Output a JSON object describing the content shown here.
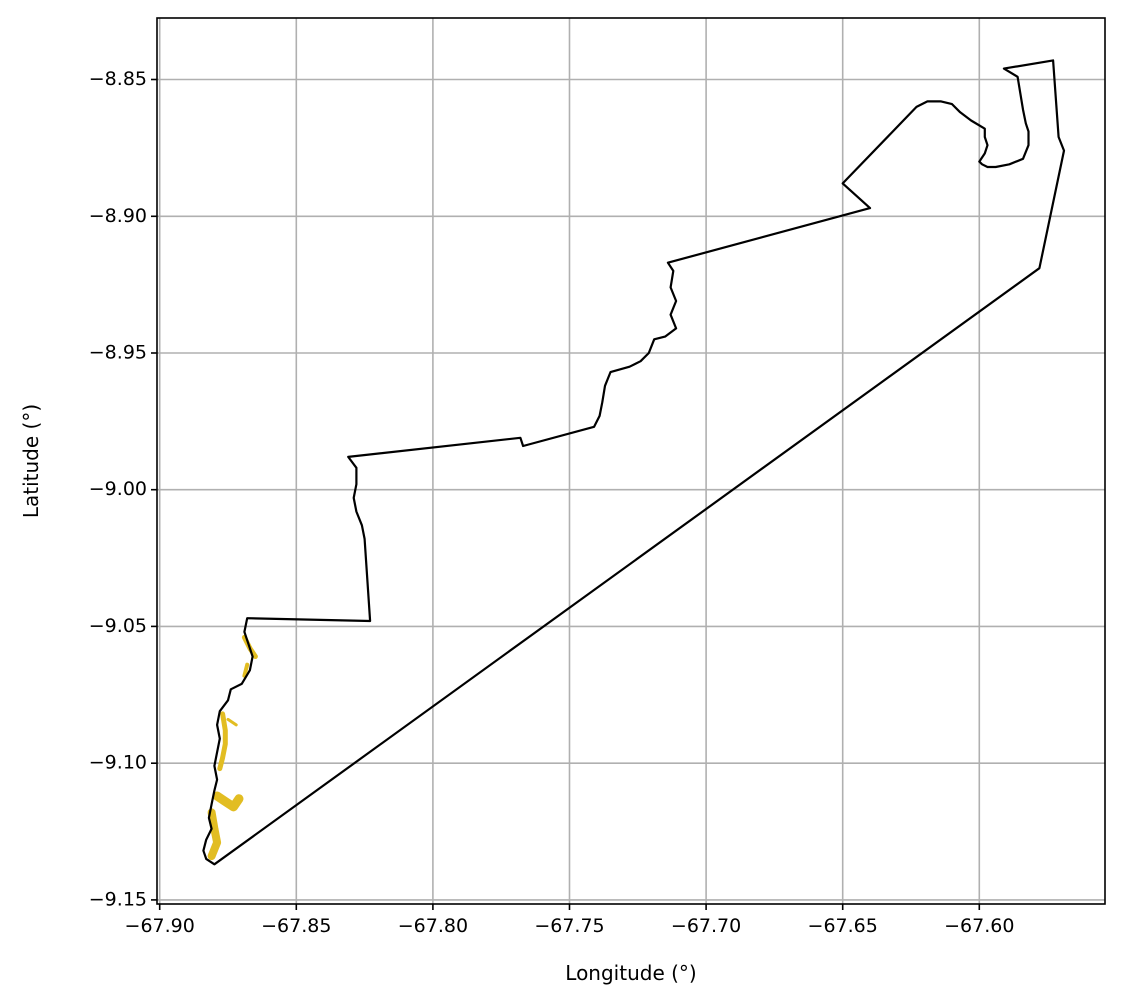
{
  "chart_data": {
    "type": "map",
    "xlabel": "Longitude (°)",
    "ylabel": "Latitude (°)",
    "xlim": [
      -67.901,
      -67.554
    ],
    "ylim": [
      -9.1515,
      -8.8275
    ],
    "grid": true,
    "x_ticks": [
      -67.9,
      -67.85,
      -67.8,
      -67.75,
      -67.7,
      -67.65,
      -67.6
    ],
    "x_tick_labels": [
      "−67.90",
      "−67.85",
      "−67.80",
      "−67.75",
      "−67.70",
      "−67.65",
      "−67.60"
    ],
    "y_ticks": [
      -8.85,
      -8.9,
      -8.95,
      -9.0,
      -9.05,
      -9.1,
      -9.15
    ],
    "y_tick_labels": [
      "−8.85",
      "−8.90",
      "−8.95",
      "−9.00",
      "−9.05",
      "−9.10",
      "−9.15"
    ],
    "colors": {
      "boundary": "#000000",
      "water": "#e2bd22",
      "grid": "#b0b0b0"
    },
    "boundary": [
      [
        -67.88,
        -9.137
      ],
      [
        -67.578,
        -8.919
      ],
      [
        -67.569,
        -8.876
      ],
      [
        -67.571,
        -8.871
      ],
      [
        -67.573,
        -8.843
      ],
      [
        -67.591,
        -8.846
      ],
      [
        -67.586,
        -8.849
      ],
      [
        -67.585,
        -8.855
      ],
      [
        -67.584,
        -8.861
      ],
      [
        -67.583,
        -8.866
      ],
      [
        -67.582,
        -8.869
      ],
      [
        -67.582,
        -8.874
      ],
      [
        -67.584,
        -8.879
      ],
      [
        -67.589,
        -8.881
      ],
      [
        -67.594,
        -8.882
      ],
      [
        -67.597,
        -8.882
      ],
      [
        -67.599,
        -8.881
      ],
      [
        -67.6,
        -8.88
      ],
      [
        -67.598,
        -8.877
      ],
      [
        -67.597,
        -8.874
      ],
      [
        -67.598,
        -8.871
      ],
      [
        -67.598,
        -8.868
      ],
      [
        -67.603,
        -8.865
      ],
      [
        -67.607,
        -8.862
      ],
      [
        -67.61,
        -8.859
      ],
      [
        -67.614,
        -8.858
      ],
      [
        -67.619,
        -8.858
      ],
      [
        -67.623,
        -8.86
      ],
      [
        -67.65,
        -8.888
      ],
      [
        -67.64,
        -8.897
      ],
      [
        -67.714,
        -8.917
      ],
      [
        -67.712,
        -8.92
      ],
      [
        -67.713,
        -8.926
      ],
      [
        -67.711,
        -8.931
      ],
      [
        -67.713,
        -8.936
      ],
      [
        -67.711,
        -8.941
      ],
      [
        -67.715,
        -8.944
      ],
      [
        -67.719,
        -8.945
      ],
      [
        -67.721,
        -8.95
      ],
      [
        -67.724,
        -8.953
      ],
      [
        -67.728,
        -8.955
      ],
      [
        -67.735,
        -8.957
      ],
      [
        -67.737,
        -8.962
      ],
      [
        -67.738,
        -8.968
      ],
      [
        -67.739,
        -8.973
      ],
      [
        -67.741,
        -8.977
      ],
      [
        -67.767,
        -8.984
      ],
      [
        -67.768,
        -8.981
      ],
      [
        -67.831,
        -8.988
      ],
      [
        -67.828,
        -8.992
      ],
      [
        -67.828,
        -8.998
      ],
      [
        -67.829,
        -9.003
      ],
      [
        -67.828,
        -9.008
      ],
      [
        -67.826,
        -9.013
      ],
      [
        -67.825,
        -9.018
      ],
      [
        -67.823,
        -9.048
      ],
      [
        -67.868,
        -9.047
      ],
      [
        -67.869,
        -9.052
      ],
      [
        -67.867,
        -9.058
      ],
      [
        -67.866,
        -9.061
      ],
      [
        -67.867,
        -9.066
      ],
      [
        -67.87,
        -9.071
      ],
      [
        -67.874,
        -9.073
      ],
      [
        -67.875,
        -9.077
      ],
      [
        -67.878,
        -9.081
      ],
      [
        -67.879,
        -9.086
      ],
      [
        -67.878,
        -9.091
      ],
      [
        -67.879,
        -9.096
      ],
      [
        -67.88,
        -9.101
      ],
      [
        -67.879,
        -9.106
      ],
      [
        -67.88,
        -9.11
      ],
      [
        -67.881,
        -9.115
      ],
      [
        -67.882,
        -9.12
      ],
      [
        -67.881,
        -9.124
      ],
      [
        -67.883,
        -9.128
      ],
      [
        -67.884,
        -9.132
      ],
      [
        -67.883,
        -9.135
      ],
      [
        -67.88,
        -9.137
      ]
    ],
    "water_features": [
      {
        "width": 5,
        "points": [
          [
            -67.869,
            -9.054
          ],
          [
            -67.867,
            -9.058
          ],
          [
            -67.865,
            -9.061
          ]
        ]
      },
      {
        "width": 4,
        "points": [
          [
            -67.868,
            -9.064
          ],
          [
            -67.869,
            -9.068
          ]
        ]
      },
      {
        "width": 5,
        "points": [
          [
            -67.877,
            -9.082
          ],
          [
            -67.876,
            -9.088
          ],
          [
            -67.876,
            -9.093
          ],
          [
            -67.877,
            -9.098
          ],
          [
            -67.878,
            -9.102
          ]
        ]
      },
      {
        "width": 3,
        "points": [
          [
            -67.875,
            -9.084
          ],
          [
            -67.872,
            -9.086
          ]
        ]
      },
      {
        "width": 9,
        "points": [
          [
            -67.879,
            -9.112
          ],
          [
            -67.876,
            -9.114
          ],
          [
            -67.873,
            -9.116
          ],
          [
            -67.871,
            -9.113
          ]
        ]
      },
      {
        "width": 8,
        "points": [
          [
            -67.881,
            -9.118
          ],
          [
            -67.88,
            -9.124
          ],
          [
            -67.879,
            -9.129
          ],
          [
            -67.881,
            -9.134
          ]
        ]
      }
    ]
  }
}
